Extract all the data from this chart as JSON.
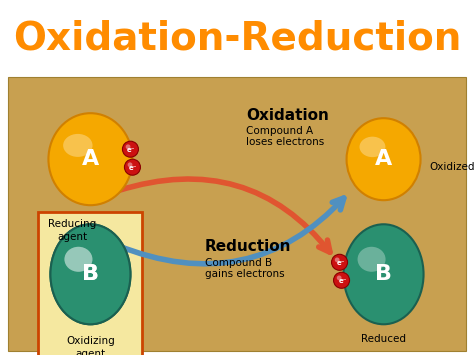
{
  "title": "Oxidation-Reduction",
  "title_color": "#FF8C00",
  "title_fontsize": 28,
  "bg_color": "#C8A050",
  "panel_bg": "#F5E8A0",
  "sphere_A_color": "#F5A800",
  "sphere_A_dark": "#D08000",
  "sphere_B_color": "#2A9070",
  "sphere_B_dark": "#1A6050",
  "electron_color": "#CC1111",
  "electron_dark": "#880000",
  "arrow_red_color": "#E05530",
  "arrow_blue_color": "#5090C0",
  "oxidation_label": "Oxidation",
  "oxidation_sub1": "Compound A",
  "oxidation_sub2": "loses electrons",
  "reduction_label": "Reduction",
  "reduction_sub1": "Compound B",
  "reduction_sub2": "gains electrons",
  "reducing_agent_label": "Reducing\nagent",
  "oxidizing_agent_label": "Oxidizing\nagent",
  "oxidized_label": "Oxidized",
  "reduced_label": "Reduced",
  "label_A": "A",
  "label_B": "B"
}
